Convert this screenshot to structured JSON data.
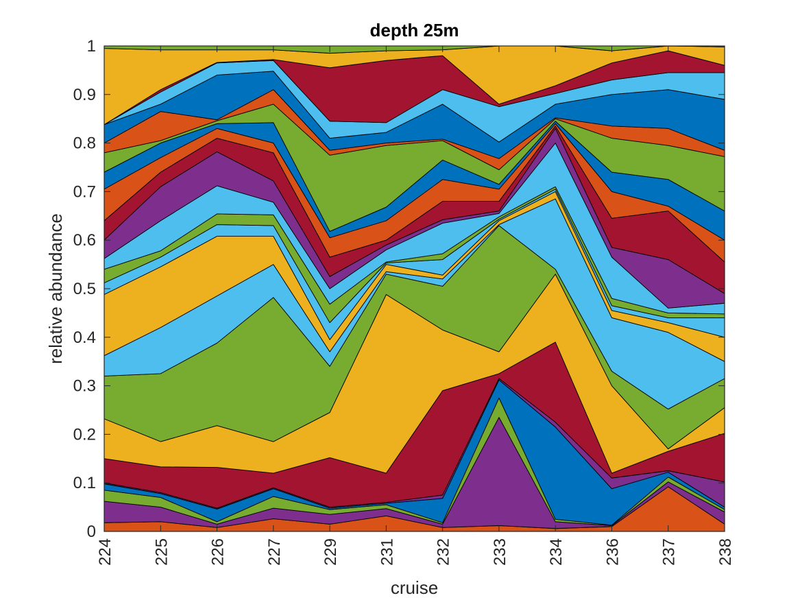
{
  "chart_data": {
    "type": "area",
    "stacked": true,
    "title": "depth 25m",
    "xlabel": "cruise",
    "ylabel": "relative abundance",
    "x": [
      "224",
      "225",
      "226",
      "227",
      "229",
      "231",
      "232",
      "233",
      "234",
      "236",
      "237",
      "238"
    ],
    "ylim": [
      0,
      1
    ],
    "yticks": [
      "0",
      "0.1",
      "0.2",
      "0.3",
      "0.4",
      "0.5",
      "0.6",
      "0.7",
      "0.8",
      "0.9",
      "1"
    ],
    "boundaries": [
      [
        0,
        0,
        0,
        0,
        0,
        0,
        0,
        0,
        0,
        0,
        0,
        0
      ],
      [
        0.018,
        0.02,
        0.008,
        0.026,
        0.015,
        0.032,
        0.008,
        0.012,
        0.006,
        0.01,
        0.092,
        0.015
      ],
      [
        0.062,
        0.05,
        0.015,
        0.048,
        0.035,
        0.047,
        0.015,
        0.235,
        0.02,
        0.012,
        0.102,
        0.04
      ],
      [
        0.085,
        0.07,
        0.02,
        0.072,
        0.045,
        0.055,
        0.018,
        0.275,
        0.025,
        0.013,
        0.112,
        0.045
      ],
      [
        0.098,
        0.078,
        0.046,
        0.088,
        0.048,
        0.058,
        0.068,
        0.312,
        0.215,
        0.088,
        0.122,
        0.05
      ],
      [
        0.1,
        0.08,
        0.048,
        0.09,
        0.05,
        0.06,
        0.075,
        0.315,
        0.225,
        0.11,
        0.125,
        0.102
      ],
      [
        0.15,
        0.133,
        0.132,
        0.12,
        0.152,
        0.12,
        0.29,
        0.325,
        0.39,
        0.12,
        0.165,
        0.202
      ],
      [
        0.232,
        0.185,
        0.218,
        0.185,
        0.245,
        0.488,
        0.415,
        0.37,
        0.53,
        0.3,
        0.17,
        0.255
      ],
      [
        0.32,
        0.325,
        0.388,
        0.482,
        0.34,
        0.53,
        0.505,
        0.63,
        0.54,
        0.33,
        0.252,
        0.315
      ],
      [
        0.362,
        0.42,
        0.485,
        0.55,
        0.37,
        0.535,
        0.52,
        0.632,
        0.685,
        0.44,
        0.41,
        0.35
      ],
      [
        0.488,
        0.545,
        0.608,
        0.608,
        0.395,
        0.55,
        0.528,
        0.64,
        0.7,
        0.455,
        0.43,
        0.4
      ],
      [
        0.512,
        0.565,
        0.632,
        0.63,
        0.43,
        0.553,
        0.56,
        0.643,
        0.705,
        0.465,
        0.44,
        0.44
      ],
      [
        0.54,
        0.578,
        0.654,
        0.652,
        0.468,
        0.555,
        0.572,
        0.648,
        0.71,
        0.48,
        0.45,
        0.448
      ],
      [
        0.562,
        0.64,
        0.712,
        0.678,
        0.5,
        0.58,
        0.635,
        0.655,
        0.8,
        0.565,
        0.46,
        0.47
      ],
      [
        0.6,
        0.71,
        0.782,
        0.722,
        0.525,
        0.59,
        0.642,
        0.66,
        0.83,
        0.585,
        0.56,
        0.49
      ],
      [
        0.64,
        0.74,
        0.81,
        0.78,
        0.565,
        0.6,
        0.68,
        0.68,
        0.835,
        0.645,
        0.66,
        0.555
      ],
      [
        0.705,
        0.77,
        0.83,
        0.8,
        0.605,
        0.64,
        0.725,
        0.705,
        0.84,
        0.7,
        0.67,
        0.6
      ],
      [
        0.74,
        0.8,
        0.84,
        0.842,
        0.618,
        0.668,
        0.765,
        0.715,
        0.845,
        0.74,
        0.725,
        0.66
      ],
      [
        0.78,
        0.805,
        0.846,
        0.88,
        0.775,
        0.795,
        0.805,
        0.745,
        0.85,
        0.81,
        0.795,
        0.772
      ],
      [
        0.8,
        0.865,
        0.848,
        0.91,
        0.785,
        0.8,
        0.808,
        0.768,
        0.852,
        0.835,
        0.83,
        0.785
      ],
      [
        0.838,
        0.88,
        0.94,
        0.948,
        0.81,
        0.822,
        0.88,
        0.802,
        0.88,
        0.9,
        0.91,
        0.89
      ],
      [
        0.838,
        0.905,
        0.965,
        0.97,
        0.845,
        0.842,
        0.91,
        0.875,
        0.902,
        0.93,
        0.945,
        0.945
      ],
      [
        0.838,
        0.91,
        0.966,
        0.972,
        0.955,
        0.97,
        0.98,
        0.88,
        0.918,
        0.965,
        0.99,
        0.96
      ],
      [
        0.995,
        0.992,
        0.992,
        0.992,
        0.985,
        0.99,
        0.992,
        1.0,
        1.0,
        0.99,
        1.0,
        0.998
      ],
      [
        1,
        1,
        1,
        1,
        1,
        1,
        1,
        1,
        1,
        1,
        1,
        1
      ]
    ],
    "colors": [
      "#D95319",
      "#7E2F8E",
      "#77AC30",
      "#0072BD",
      "#7E2F8E",
      "#A2142F",
      "#EDB120",
      "#77AC30",
      "#4DBEEE",
      "#EDB120",
      "#4DBEEE",
      "#77AC30",
      "#4DBEEE",
      "#7E2F8E",
      "#A2142F",
      "#D95319",
      "#0072BD",
      "#77AC30",
      "#D95319",
      "#0072BD",
      "#4DBEEE",
      "#A2142F",
      "#EDB120",
      "#77AC30"
    ],
    "grid": false,
    "legend": "none"
  }
}
